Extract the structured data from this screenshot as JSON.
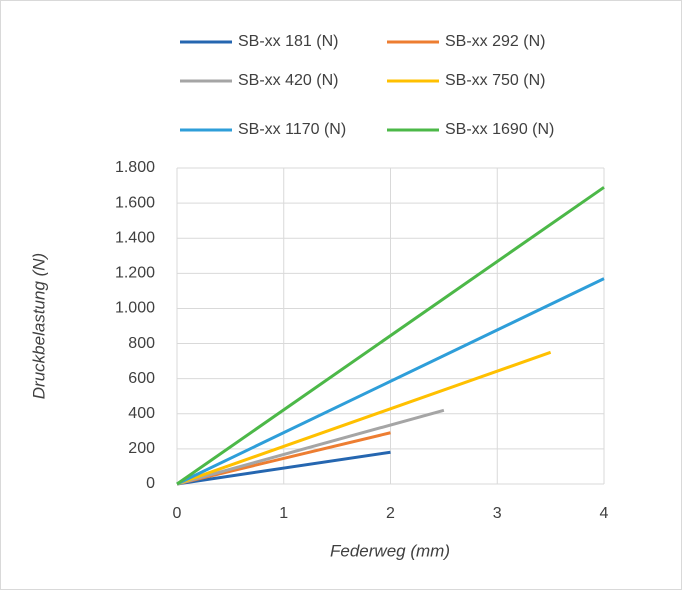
{
  "chart_data": {
    "type": "line",
    "xlabel": "Federweg (mm)",
    "ylabel": "Druckbelastung (N)",
    "xlim": [
      0,
      4
    ],
    "xticks": [
      0,
      1,
      2,
      3,
      4
    ],
    "ylim": [
      0,
      1800
    ],
    "yticks": [
      0,
      200,
      400,
      600,
      800,
      {
        "value": 1000,
        "label": "1.000"
      },
      {
        "value": 1200,
        "label": "1.200"
      },
      {
        "value": 1400,
        "label": "1.400"
      },
      {
        "value": 1600,
        "label": "1.600"
      },
      {
        "value": 1800,
        "label": "1.800"
      }
    ],
    "grid": true,
    "legend": "top",
    "series": [
      {
        "name": "SB-xx 181 (N)",
        "color": "#2566b0",
        "x": [
          0,
          2
        ],
        "values": [
          0,
          181
        ]
      },
      {
        "name": "SB-xx 292 (N)",
        "color": "#ed7d31",
        "x": [
          0,
          2
        ],
        "values": [
          0,
          292
        ]
      },
      {
        "name": "SB-xx 420 (N)",
        "color": "#a5a5a5",
        "x": [
          0,
          2.5
        ],
        "values": [
          0,
          420
        ]
      },
      {
        "name": "SB-xx 750 (N)",
        "color": "#ffc000",
        "x": [
          0,
          3.5
        ],
        "values": [
          0,
          750
        ]
      },
      {
        "name": "SB-xx 1170 (N)",
        "color": "#2e9ed9",
        "x": [
          0,
          4
        ],
        "values": [
          0,
          1170
        ]
      },
      {
        "name": "SB-xx 1690 (N)",
        "color": "#4cb848",
        "x": [
          0,
          4
        ],
        "values": [
          0,
          1690
        ]
      }
    ]
  }
}
